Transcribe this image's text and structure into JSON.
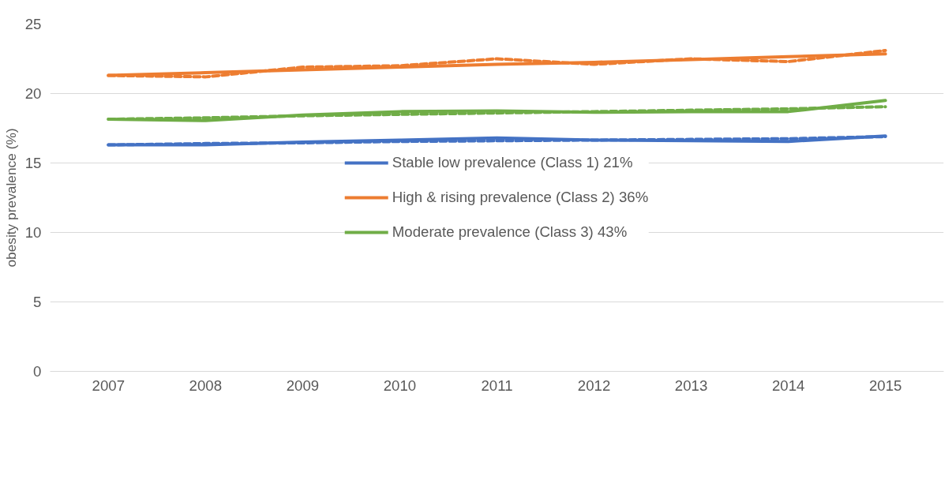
{
  "chart_data": {
    "type": "line",
    "ylabel": "obesity prevalence (%)",
    "categories": [
      "2007",
      "2008",
      "2009",
      "2010",
      "2011",
      "2012",
      "2013",
      "2014",
      "2015"
    ],
    "ylim": [
      0,
      25
    ],
    "yticks": [
      0,
      5,
      10,
      15,
      20,
      25
    ],
    "grid": "y",
    "legend": "center",
    "line_style": "solid",
    "series": [
      {
        "name": "Stable low prevalence (Class 1) 21%",
        "color": "#4472c4",
        "values": [
          16.3,
          16.3,
          16.5,
          16.65,
          16.8,
          16.65,
          16.6,
          16.55,
          16.95
        ]
      },
      {
        "name": "High & rising prevalence (Class 2) 36%",
        "color": "#ed7d31",
        "values": [
          21.3,
          21.5,
          21.7,
          21.9,
          22.1,
          22.25,
          22.45,
          22.65,
          22.85
        ]
      },
      {
        "name": "Moderate prevalence (Class 3) 43%",
        "color": "#70ad47",
        "values": [
          18.15,
          18.05,
          18.45,
          18.7,
          18.75,
          18.65,
          18.7,
          18.7,
          19.5
        ]
      },
      {
        "color": "#4472c4",
        "line_style": "dashed",
        "values": [
          16.3,
          16.4,
          16.45,
          16.55,
          16.6,
          16.65,
          16.7,
          16.75,
          16.9
        ]
      },
      {
        "color": "#ed7d31",
        "line_style": "dashed",
        "values": [
          21.3,
          21.2,
          21.9,
          22.0,
          22.5,
          22.1,
          22.5,
          22.3,
          23.1
        ]
      },
      {
        "color": "#70ad47",
        "line_style": "dashed",
        "values": [
          18.15,
          18.25,
          18.4,
          18.5,
          18.6,
          18.7,
          18.8,
          18.9,
          19.05
        ]
      }
    ]
  }
}
